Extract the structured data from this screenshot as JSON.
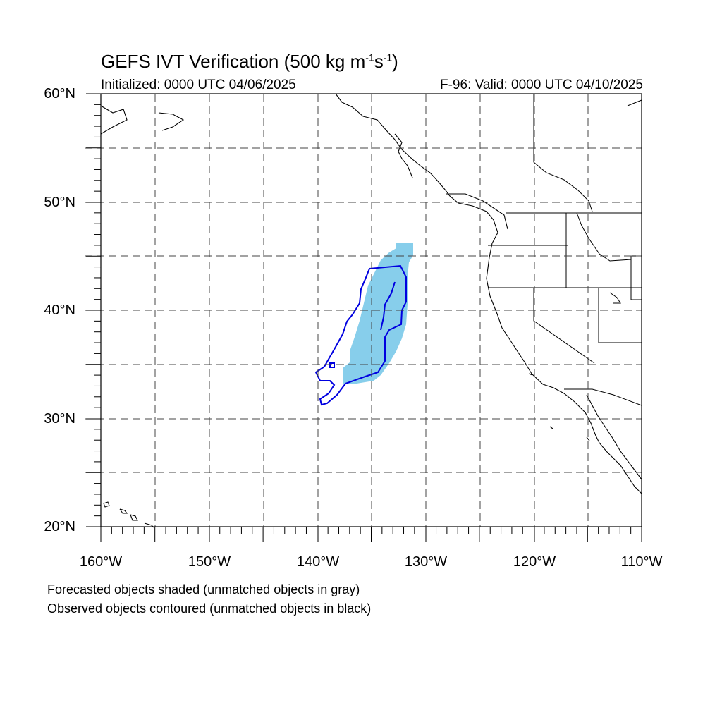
{
  "title": {
    "main": "GEFS IVT Verification (500 kg m",
    "sup1": "-1",
    "mid": "s",
    "sup2": "-1",
    "end": ")"
  },
  "initialized": "Initialized: 0000 UTC 04/06/2025",
  "valid": "F-96: Valid: 0000 UTC 04/10/2025",
  "lat_labels": [
    "60°N",
    "50°N",
    "40°N",
    "30°N",
    "20°N"
  ],
  "lon_labels": [
    "160°W",
    "150°W",
    "140°W",
    "130°W",
    "120°W",
    "110°W"
  ],
  "footer": {
    "line1": "Forecasted objects shaded (unmatched objects in gray)",
    "line2": "Observed objects contoured (unmatched objects in black)"
  },
  "map_extent": {
    "lon": [
      -160,
      -110
    ],
    "lat": [
      20,
      60
    ]
  },
  "colors": {
    "forecast_fill": "#87ceeb",
    "observed_contour": "#0000e0",
    "grid": "#000000"
  }
}
